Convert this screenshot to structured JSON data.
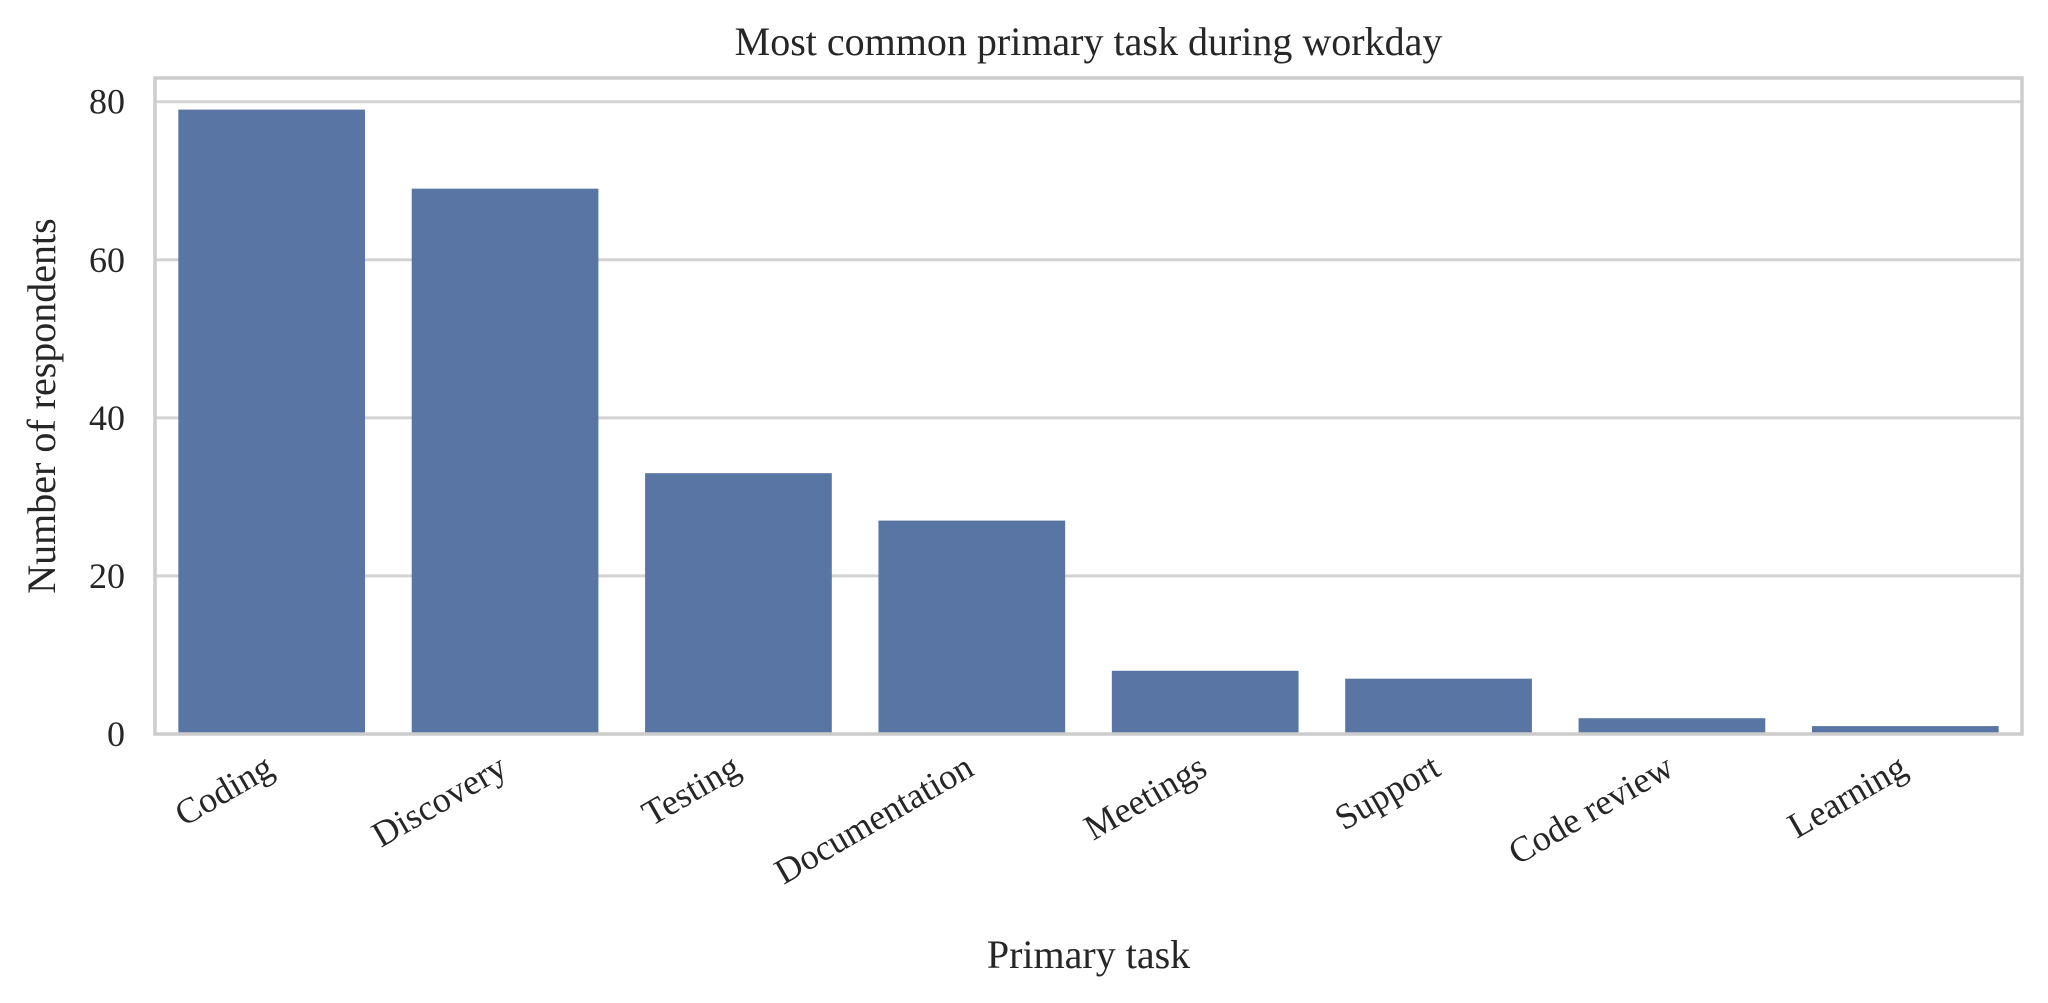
{
  "chart_data": {
    "type": "bar",
    "title": "Most common primary task during workday",
    "xlabel": "Primary task",
    "ylabel": "Number of respondents",
    "categories": [
      "Coding",
      "Discovery",
      "Testing",
      "Documentation",
      "Meetings",
      "Support",
      "Code review",
      "Learning"
    ],
    "values": [
      79,
      69,
      33,
      27,
      8,
      7,
      2,
      1
    ],
    "ylim": [
      0,
      83
    ],
    "yticks": [
      0,
      20,
      40,
      60,
      80
    ],
    "grid": "horizontal",
    "legend": "none",
    "bar_color": "#5975a4",
    "x_tick_rotation_deg": -30
  }
}
